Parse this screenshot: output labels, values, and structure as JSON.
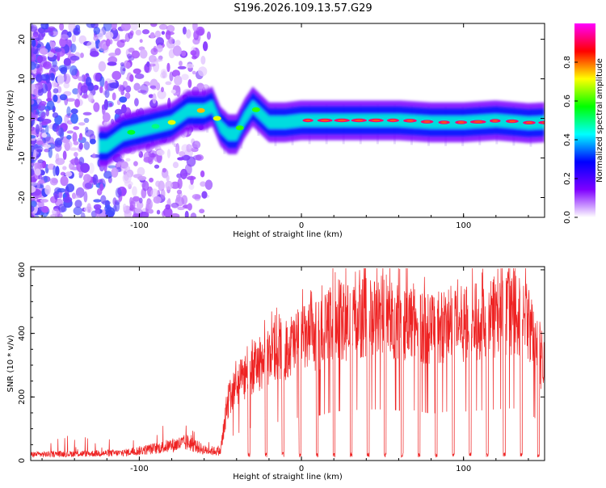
{
  "title": "S196.2026.109.13.57.G29",
  "chart_data": [
    {
      "type": "heatmap",
      "name": "spectrogram",
      "xlabel": "Height of straight line (km)",
      "ylabel": "Frequency (Hz)",
      "xlim": [
        -167,
        150
      ],
      "ylim": [
        -25,
        24
      ],
      "xticks": [
        -100,
        0,
        100
      ],
      "yticks": [
        20,
        10,
        0,
        -10,
        -20
      ],
      "xtick_labels": [
        "-100",
        "0",
        "100"
      ],
      "ytick_labels": [
        "20",
        "10",
        "0",
        "-10",
        "-20"
      ],
      "ridge": {
        "x": [
          -120,
          -110,
          -100,
          -90,
          -80,
          -70,
          -60,
          -55,
          -50,
          -45,
          -40,
          -35,
          -30,
          -25,
          -20,
          -10,
          0,
          20,
          40,
          60,
          80,
          100,
          120,
          140,
          150
        ],
        "freq": [
          -7,
          -4,
          -3,
          -2,
          -1,
          2,
          2,
          3,
          -2,
          -4,
          -4,
          0,
          3,
          1,
          -1,
          -1,
          -0.5,
          -0.5,
          -0.5,
          -0.5,
          -1,
          -1,
          -0.5,
          -1.2,
          -1
        ]
      },
      "colorbar": {
        "label": "Normalized spectral amplitude",
        "range": [
          0,
          1
        ],
        "ticks": [
          0.0,
          0.2,
          0.4,
          0.6,
          0.8
        ],
        "tick_labels": [
          "0.0",
          "0.2",
          "0.4",
          "0.6",
          "0.8"
        ],
        "colors": [
          "#ffffff",
          "#7f00ff",
          "#0000ff",
          "#00ffff",
          "#00ff00",
          "#ffff00",
          "#ff0000",
          "#ff00ff"
        ]
      }
    },
    {
      "type": "line",
      "name": "snr",
      "xlabel": "Height of straight line (km)",
      "ylabel": "SNR (10 * v/v)",
      "xlim": [
        -167,
        150
      ],
      "ylim": [
        0,
        610
      ],
      "xticks": [
        -100,
        0,
        100
      ],
      "yticks": [
        0,
        200,
        400,
        600
      ],
      "xtick_labels": [
        "-100",
        "0",
        "100"
      ],
      "ytick_labels": [
        "0",
        "200",
        "400",
        "600"
      ],
      "color": "#ee2222",
      "envelope": {
        "x": [
          -167,
          -110,
          -90,
          -80,
          -70,
          -60,
          -50,
          -45,
          -40,
          -30,
          -20,
          -10,
          0,
          10,
          20,
          30,
          40,
          50,
          60,
          70,
          80,
          90,
          100,
          110,
          120,
          130,
          140,
          150
        ],
        "level": [
          20,
          25,
          40,
          50,
          60,
          35,
          30,
          200,
          240,
          300,
          330,
          360,
          390,
          400,
          440,
          450,
          460,
          460,
          450,
          450,
          420,
          440,
          440,
          450,
          460,
          470,
          450,
          280
        ]
      },
      "dip_spacing_km": 10.5,
      "dip_start_km": -54
    }
  ]
}
